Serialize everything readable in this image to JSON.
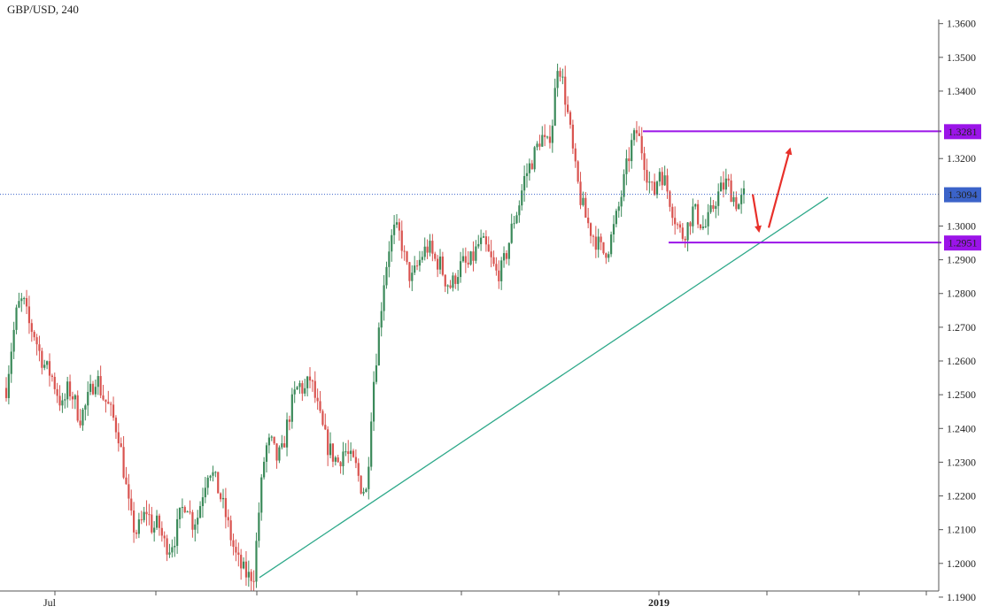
{
  "chart_data": {
    "type": "candlestick",
    "symbol_label": "GBP/USD, 240",
    "y_axis": {
      "range": [
        1.185,
        1.367
      ],
      "ticks": [
        "1.3600",
        "1.3500",
        "1.3400",
        "1.3200",
        "1.3000",
        "1.2900",
        "1.2800",
        "1.2700",
        "1.2600",
        "1.2500",
        "1.2400",
        "1.2300",
        "1.2200",
        "1.2100",
        "1.2000",
        "1.1900"
      ]
    },
    "x_axis": {
      "labels": [
        {
          "text": "Jul",
          "bold": false
        },
        {
          "text": "2019",
          "bold": true
        }
      ]
    },
    "current_price": {
      "value": 1.3094,
      "label": "1.3094",
      "color": "#3b63c9"
    },
    "levels": [
      {
        "name": "resistance",
        "value": 1.3281,
        "label": "1.3281",
        "color": "#9b14e8"
      },
      {
        "name": "support",
        "value": 1.2951,
        "label": "1.2951",
        "color": "#9b14e8"
      }
    ],
    "trendline": {
      "color": "#2ea98a"
    },
    "arrows": {
      "color": "#e8302a"
    },
    "candle_colors": {
      "up": "#3b8a5a",
      "down": "#d9534f"
    },
    "price_path": [
      1.252,
      1.265,
      1.276,
      1.278,
      1.271,
      1.268,
      1.262,
      1.258,
      1.256,
      1.251,
      1.246,
      1.252,
      1.249,
      1.243,
      1.246,
      1.251,
      1.256,
      1.25,
      1.247,
      1.243,
      1.238,
      1.226,
      1.214,
      1.209,
      1.212,
      1.216,
      1.21,
      1.212,
      1.206,
      1.205,
      1.208,
      1.215,
      1.219,
      1.212,
      1.214,
      1.222,
      1.229,
      1.225,
      1.22,
      1.214,
      1.207,
      1.201,
      1.198,
      1.196,
      1.197,
      1.218,
      1.234,
      1.236,
      1.231,
      1.233,
      1.242,
      1.249,
      1.253,
      1.251,
      1.255,
      1.248,
      1.241,
      1.235,
      1.232,
      1.23,
      1.234,
      1.231,
      1.229,
      1.223,
      1.221,
      1.25,
      1.266,
      1.283,
      1.294,
      1.299,
      1.297,
      1.288,
      1.284,
      1.288,
      1.292,
      1.294,
      1.29,
      1.289,
      1.284,
      1.282,
      1.286,
      1.289,
      1.288,
      1.291,
      1.295,
      1.294,
      1.29,
      1.286,
      1.287,
      1.293,
      1.301,
      1.306,
      1.314,
      1.318,
      1.322,
      1.327,
      1.323,
      1.331,
      1.35,
      1.341,
      1.33,
      1.317,
      1.308,
      1.302,
      1.298,
      1.295,
      1.292,
      1.294,
      1.3,
      1.307,
      1.316,
      1.324,
      1.328,
      1.322,
      1.314,
      1.309,
      1.317,
      1.313,
      1.307,
      1.301,
      1.297,
      1.3,
      1.305,
      1.302,
      1.299,
      1.303,
      1.308,
      1.311,
      1.313,
      1.309,
      1.306,
      1.309
    ]
  }
}
